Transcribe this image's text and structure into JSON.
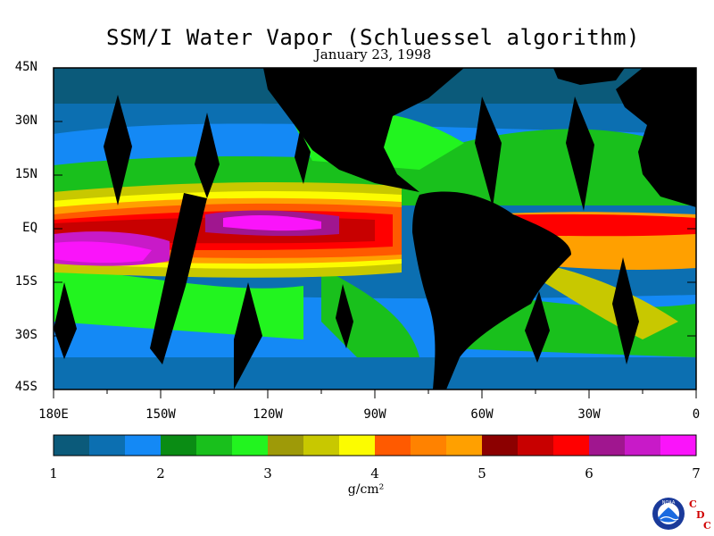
{
  "title": "SSM/I Water Vapor (Schluessel algorithm)",
  "subtitle": "January 23, 1998",
  "lat_labels": [
    "45N",
    "30N",
    "15N",
    "EQ",
    "15S",
    "30S",
    "45S"
  ],
  "lon_labels": [
    "180E",
    "150W",
    "120W",
    "90W",
    "60W",
    "30W",
    "0"
  ],
  "colorbar": {
    "ticks": [
      "1",
      "2",
      "3",
      "4",
      "5",
      "6",
      "7"
    ],
    "units": "g/cm²",
    "colors": [
      "#0b5a7a",
      "#0c6fb1",
      "#1489f5",
      "#0a8c14",
      "#19c01c",
      "#22f41f",
      "#9e9a08",
      "#c8c800",
      "#fcfc00",
      "#ff5a00",
      "#ff8200",
      "#ffa000",
      "#8c0000",
      "#c80000",
      "#ff0000",
      "#a0168f",
      "#c81ac8",
      "#fa14fa"
    ]
  },
  "logos": {
    "noaa_text": "NOAA",
    "cdc_letters": [
      "C",
      "D",
      "C"
    ]
  }
}
